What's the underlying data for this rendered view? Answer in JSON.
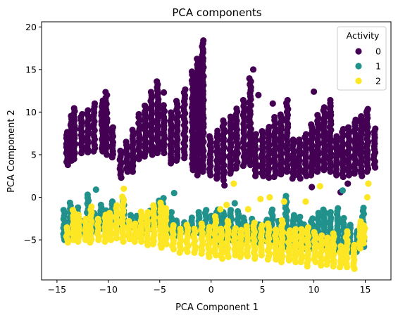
{
  "chart_data": {
    "type": "scatter",
    "title": "PCA components",
    "xlabel": "PCA Component 1",
    "ylabel": "PCA Component 2",
    "xlim": [
      -16.5,
      17.5
    ],
    "ylim": [
      -9.7,
      20.6
    ],
    "xticks": [
      -15,
      -10,
      -5,
      0,
      5,
      10,
      15
    ],
    "yticks": [
      -5,
      0,
      5,
      10,
      15,
      20
    ],
    "grid": false,
    "legend": {
      "title": "Activity",
      "placement": "top-right"
    },
    "series": [
      {
        "name": "0",
        "color": "#440154",
        "columns": [
          [
            -14,
            3.8,
            7.9
          ],
          [
            -13.6,
            4.3,
            9.8
          ],
          [
            -13.3,
            4.5,
            10.6
          ],
          [
            -12.6,
            5.2,
            9.8
          ],
          [
            -12.0,
            5.3,
            10.4
          ],
          [
            -11.4,
            5.4,
            11.0
          ],
          [
            -10.6,
            5.4,
            11.6
          ],
          [
            -10.2,
            5.0,
            12.5
          ],
          [
            -9.6,
            4.7,
            8.5
          ],
          [
            -8.8,
            2.3,
            5.7
          ],
          [
            -8.2,
            3.0,
            6.5
          ],
          [
            -7.6,
            3.0,
            8.0
          ],
          [
            -7.0,
            4.5,
            10.0
          ],
          [
            -6.4,
            4.8,
            10.8
          ],
          [
            -5.8,
            5.0,
            12.5
          ],
          [
            -5.2,
            5.2,
            13.8
          ],
          [
            -4.6,
            5.2,
            11.0
          ],
          [
            -3.9,
            4.0,
            10.0
          ],
          [
            -3.3,
            4.3,
            11.4
          ],
          [
            -2.6,
            4.6,
            12.8
          ],
          [
            -1.8,
            3.2,
            15.0
          ],
          [
            -1.3,
            2.6,
            16.5
          ],
          [
            -0.8,
            3.0,
            18.7
          ],
          [
            -0.1,
            2.6,
            7.3
          ],
          [
            0.6,
            2.2,
            7.8
          ],
          [
            1.2,
            2.0,
            9.3
          ],
          [
            1.9,
            2.8,
            9.6
          ],
          [
            2.5,
            3.4,
            10.6
          ],
          [
            3.2,
            3.7,
            11.5
          ],
          [
            3.8,
            3.8,
            14.0
          ],
          [
            4.3,
            2.5,
            7.6
          ],
          [
            5.0,
            2.5,
            8.0
          ],
          [
            5.6,
            2.3,
            8.5
          ],
          [
            6.2,
            2.4,
            9.5
          ],
          [
            6.8,
            2.7,
            10.0
          ],
          [
            7.4,
            3.0,
            11.4
          ],
          [
            8.0,
            2.2,
            6.8
          ],
          [
            8.6,
            2.2,
            7.0
          ],
          [
            9.2,
            2.5,
            7.6
          ],
          [
            9.8,
            2.6,
            8.8
          ],
          [
            10.4,
            3.0,
            9.8
          ],
          [
            11.0,
            3.2,
            10.8
          ],
          [
            11.6,
            3.0,
            11.5
          ],
          [
            12.2,
            2.6,
            7.4
          ],
          [
            12.8,
            2.4,
            8.0
          ],
          [
            13.4,
            2.6,
            8.5
          ],
          [
            14.0,
            2.8,
            9.4
          ],
          [
            14.6,
            2.5,
            9.8
          ],
          [
            15.2,
            3.0,
            10.6
          ],
          [
            15.9,
            3.5,
            8.2
          ]
        ],
        "outliers": [
          [
            -5.5,
            5.6
          ],
          [
            -1.7,
            5.2
          ],
          [
            -0.8,
            16.0
          ],
          [
            1.3,
            1.4
          ],
          [
            -4.6,
            12.3
          ],
          [
            4.6,
            12.0
          ],
          [
            10.0,
            12.4
          ],
          [
            10.9,
            8.6
          ],
          [
            15.2,
            10.2
          ],
          [
            13.3,
            1.6
          ],
          [
            9.8,
            1.2
          ],
          [
            12.6,
            0.6
          ],
          [
            4.1,
            15.0
          ],
          [
            6.0,
            11.0
          ]
        ]
      },
      {
        "name": "1",
        "color": "#21918c",
        "columns": [
          [
            -14.3,
            -5.0,
            -1.5
          ],
          [
            -13.7,
            -4.5,
            -0.4
          ],
          [
            -13.0,
            -4.0,
            -1.2
          ],
          [
            -12.5,
            -4.2,
            -2.5
          ],
          [
            -12.0,
            -3.9,
            0.6
          ],
          [
            -11.3,
            -4.0,
            -1.6
          ],
          [
            -10.7,
            -3.7,
            -0.6
          ],
          [
            -10.2,
            -4.0,
            -1.5
          ],
          [
            -9.6,
            -3.3,
            -0.3
          ],
          [
            -9.0,
            -3.5,
            -1.8
          ],
          [
            -8.5,
            -3.0,
            -0.2
          ],
          [
            -7.8,
            -3.5,
            -1.8
          ],
          [
            -7.2,
            -3.6,
            -2.0
          ],
          [
            -6.6,
            -4.1,
            -2.5
          ],
          [
            -5.9,
            -3.7,
            -1.3
          ],
          [
            -5.1,
            -3.2,
            -0.3
          ],
          [
            -4.7,
            -3.6,
            0.1
          ],
          [
            -3.9,
            -4.2,
            -1.6
          ],
          [
            -3.3,
            -4.5,
            -2.6
          ],
          [
            -2.6,
            -4.0,
            -2.8
          ],
          [
            -1.9,
            -4.5,
            -2.3
          ],
          [
            -1.2,
            -4.2,
            -1.7
          ],
          [
            -0.5,
            -4.3,
            -1.4
          ],
          [
            0.1,
            -5.0,
            -2.2
          ],
          [
            0.6,
            -5.3,
            -1.2
          ],
          [
            1.2,
            -5.6,
            -1.5
          ],
          [
            1.9,
            -5.0,
            -1.3
          ],
          [
            2.6,
            -4.8,
            -1.6
          ],
          [
            3.2,
            -5.2,
            -2.2
          ],
          [
            4.0,
            -5.0,
            -2.3
          ],
          [
            4.7,
            -5.3,
            -2.9
          ],
          [
            5.4,
            -5.1,
            -2.4
          ],
          [
            5.9,
            -5.3,
            -1.4
          ],
          [
            6.6,
            -5.6,
            -2.6
          ],
          [
            7.3,
            -5.8,
            0.2
          ],
          [
            8.0,
            -5.6,
            -2.0
          ],
          [
            8.6,
            -5.8,
            -2.3
          ],
          [
            9.1,
            -6.0,
            -3.0
          ],
          [
            9.8,
            -6.0,
            -2.3
          ],
          [
            10.4,
            -5.7,
            -1.7
          ],
          [
            11.0,
            -6.0,
            -1.4
          ],
          [
            11.6,
            -6.3,
            -1.5
          ],
          [
            12.3,
            -6.2,
            -1.2
          ],
          [
            12.9,
            -6.3,
            -2.3
          ],
          [
            13.5,
            -6.4,
            -3.2
          ],
          [
            14.2,
            -6.4,
            -3.7
          ],
          [
            14.8,
            -5.8,
            -1.0
          ]
        ],
        "outliers": [
          [
            -11.2,
            0.9
          ],
          [
            -3.6,
            0.5
          ],
          [
            12.8,
            0.8
          ],
          [
            2.3,
            -0.7
          ]
        ]
      },
      {
        "name": "2",
        "color": "#fde725",
        "columns": [
          [
            -14.0,
            -5.3,
            -3.3
          ],
          [
            -13.4,
            -5.0,
            -1.3
          ],
          [
            -12.9,
            -5.2,
            -1.9
          ],
          [
            -12.2,
            -5.0,
            -2.4
          ],
          [
            -11.7,
            -5.3,
            -1.0
          ],
          [
            -11.0,
            -5.0,
            -2.5
          ],
          [
            -10.3,
            -5.2,
            -2.0
          ],
          [
            -9.8,
            -5.0,
            -1.8
          ],
          [
            -9.2,
            -4.8,
            -0.9
          ],
          [
            -8.6,
            -5.2,
            0.2
          ],
          [
            -8.0,
            -4.9,
            -2.5
          ],
          [
            -7.4,
            -5.2,
            -2.8
          ],
          [
            -6.8,
            -5.2,
            -1.6
          ],
          [
            -6.2,
            -5.6,
            -1.6
          ],
          [
            -5.6,
            -5.5,
            -0.8
          ],
          [
            -4.9,
            -5.9,
            -0.6
          ],
          [
            -4.4,
            -5.5,
            -1.2
          ],
          [
            -3.7,
            -6.1,
            -3.0
          ],
          [
            -3.0,
            -6.5,
            -3.4
          ],
          [
            -2.3,
            -6.4,
            -3.2
          ],
          [
            -1.6,
            -6.5,
            -3.6
          ],
          [
            -0.9,
            -6.6,
            -2.8
          ],
          [
            -0.2,
            -7.0,
            -3.3
          ],
          [
            0.4,
            -6.8,
            -2.2
          ],
          [
            1.0,
            -7.2,
            -3.4
          ],
          [
            1.6,
            -7.0,
            -2.5
          ],
          [
            2.3,
            -6.8,
            -3.4
          ],
          [
            2.9,
            -7.0,
            -3.7
          ],
          [
            3.5,
            -6.9,
            -3.4
          ],
          [
            4.2,
            -7.2,
            -3.0
          ],
          [
            4.9,
            -6.8,
            -3.2
          ],
          [
            5.6,
            -7.3,
            -3.1
          ],
          [
            6.3,
            -7.3,
            -3.6
          ],
          [
            6.9,
            -7.6,
            -2.6
          ],
          [
            7.6,
            -7.4,
            -3.7
          ],
          [
            8.2,
            -7.6,
            -3.6
          ],
          [
            8.8,
            -7.6,
            -3.5
          ],
          [
            9.4,
            -8.1,
            -3.4
          ],
          [
            10.1,
            -7.6,
            -4.0
          ],
          [
            10.7,
            -8.0,
            -4.2
          ],
          [
            11.3,
            -7.9,
            -4.6
          ],
          [
            11.9,
            -8.1,
            -4.2
          ],
          [
            12.6,
            -8.2,
            -5.5
          ],
          [
            13.2,
            -8.2,
            -4.0
          ],
          [
            13.9,
            -8.4,
            -5.4
          ],
          [
            14.5,
            -6.0,
            -2.6
          ],
          [
            14.9,
            -5.4,
            -3.0
          ]
        ],
        "outliers": [
          [
            -8.5,
            1.0
          ],
          [
            -5.6,
            -1.0
          ],
          [
            0.9,
            -1.4
          ],
          [
            1.5,
            -0.9
          ],
          [
            2.2,
            1.6
          ],
          [
            4.8,
            -0.2
          ],
          [
            5.7,
            0.0
          ],
          [
            7.1,
            -0.5
          ],
          [
            9.2,
            -0.5
          ],
          [
            10.6,
            1.3
          ],
          [
            15.2,
            0.0
          ],
          [
            15.3,
            1.6
          ],
          [
            3.6,
            -1.4
          ]
        ]
      }
    ]
  }
}
